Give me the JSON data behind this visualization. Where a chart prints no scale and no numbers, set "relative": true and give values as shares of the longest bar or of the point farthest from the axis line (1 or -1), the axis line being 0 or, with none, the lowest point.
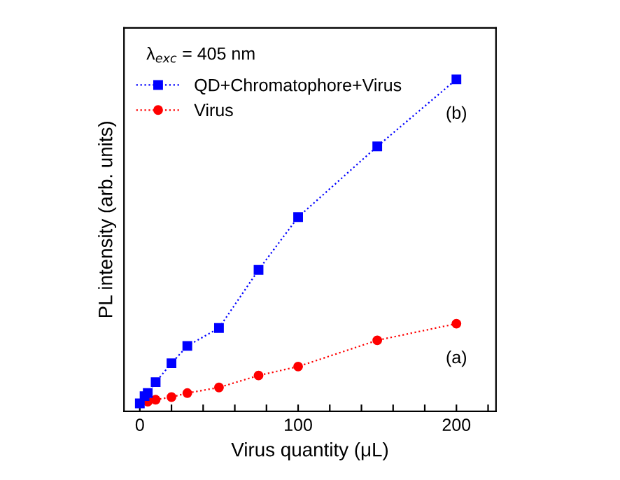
{
  "chart_data": {
    "type": "line",
    "relative": true,
    "xlabel": "Virus quantity (μL)",
    "ylabel": "PL intensity (arb. units)",
    "xlim": [
      -10,
      225
    ],
    "xticks": [
      0,
      {
        "value": 20,
        "label": null
      },
      {
        "value": 40,
        "label": null
      },
      {
        "value": 60,
        "label": null
      },
      {
        "value": 80,
        "label": null
      },
      100,
      {
        "value": 120,
        "label": null
      },
      {
        "value": 140,
        "label": null
      },
      {
        "value": 160,
        "label": null
      },
      {
        "value": 180,
        "label": null
      },
      200,
      {
        "value": 220,
        "label": null
      }
    ],
    "line_style": "dotted",
    "legend": "top left",
    "grid": false,
    "series": [
      {
        "name": "QD+Chromatophore+Virus",
        "color": "#0000ff",
        "marker": "square",
        "x": [
          0,
          3,
          5,
          10,
          20,
          30,
          50,
          75,
          100,
          150,
          200
        ],
        "values": [
          0.024,
          0.046,
          0.055,
          0.088,
          0.145,
          0.197,
          0.251,
          0.426,
          0.585,
          0.798,
          1
        ]
      },
      {
        "name": "Virus",
        "color": "#ff0000",
        "marker": "circle",
        "x": [
          5,
          10,
          20,
          30,
          50,
          75,
          100,
          150,
          200
        ],
        "values": [
          0.029,
          0.035,
          0.043,
          0.055,
          0.072,
          0.108,
          0.135,
          0.214,
          0.264
        ]
      }
    ],
    "annotations": [
      "λ$_{exc}$ = 405 nm",
      {
        "text": "(b)",
        "x": 200,
        "y": 1
      },
      {
        "text": "(a)",
        "x": 200,
        "y": 0.264
      }
    ]
  }
}
